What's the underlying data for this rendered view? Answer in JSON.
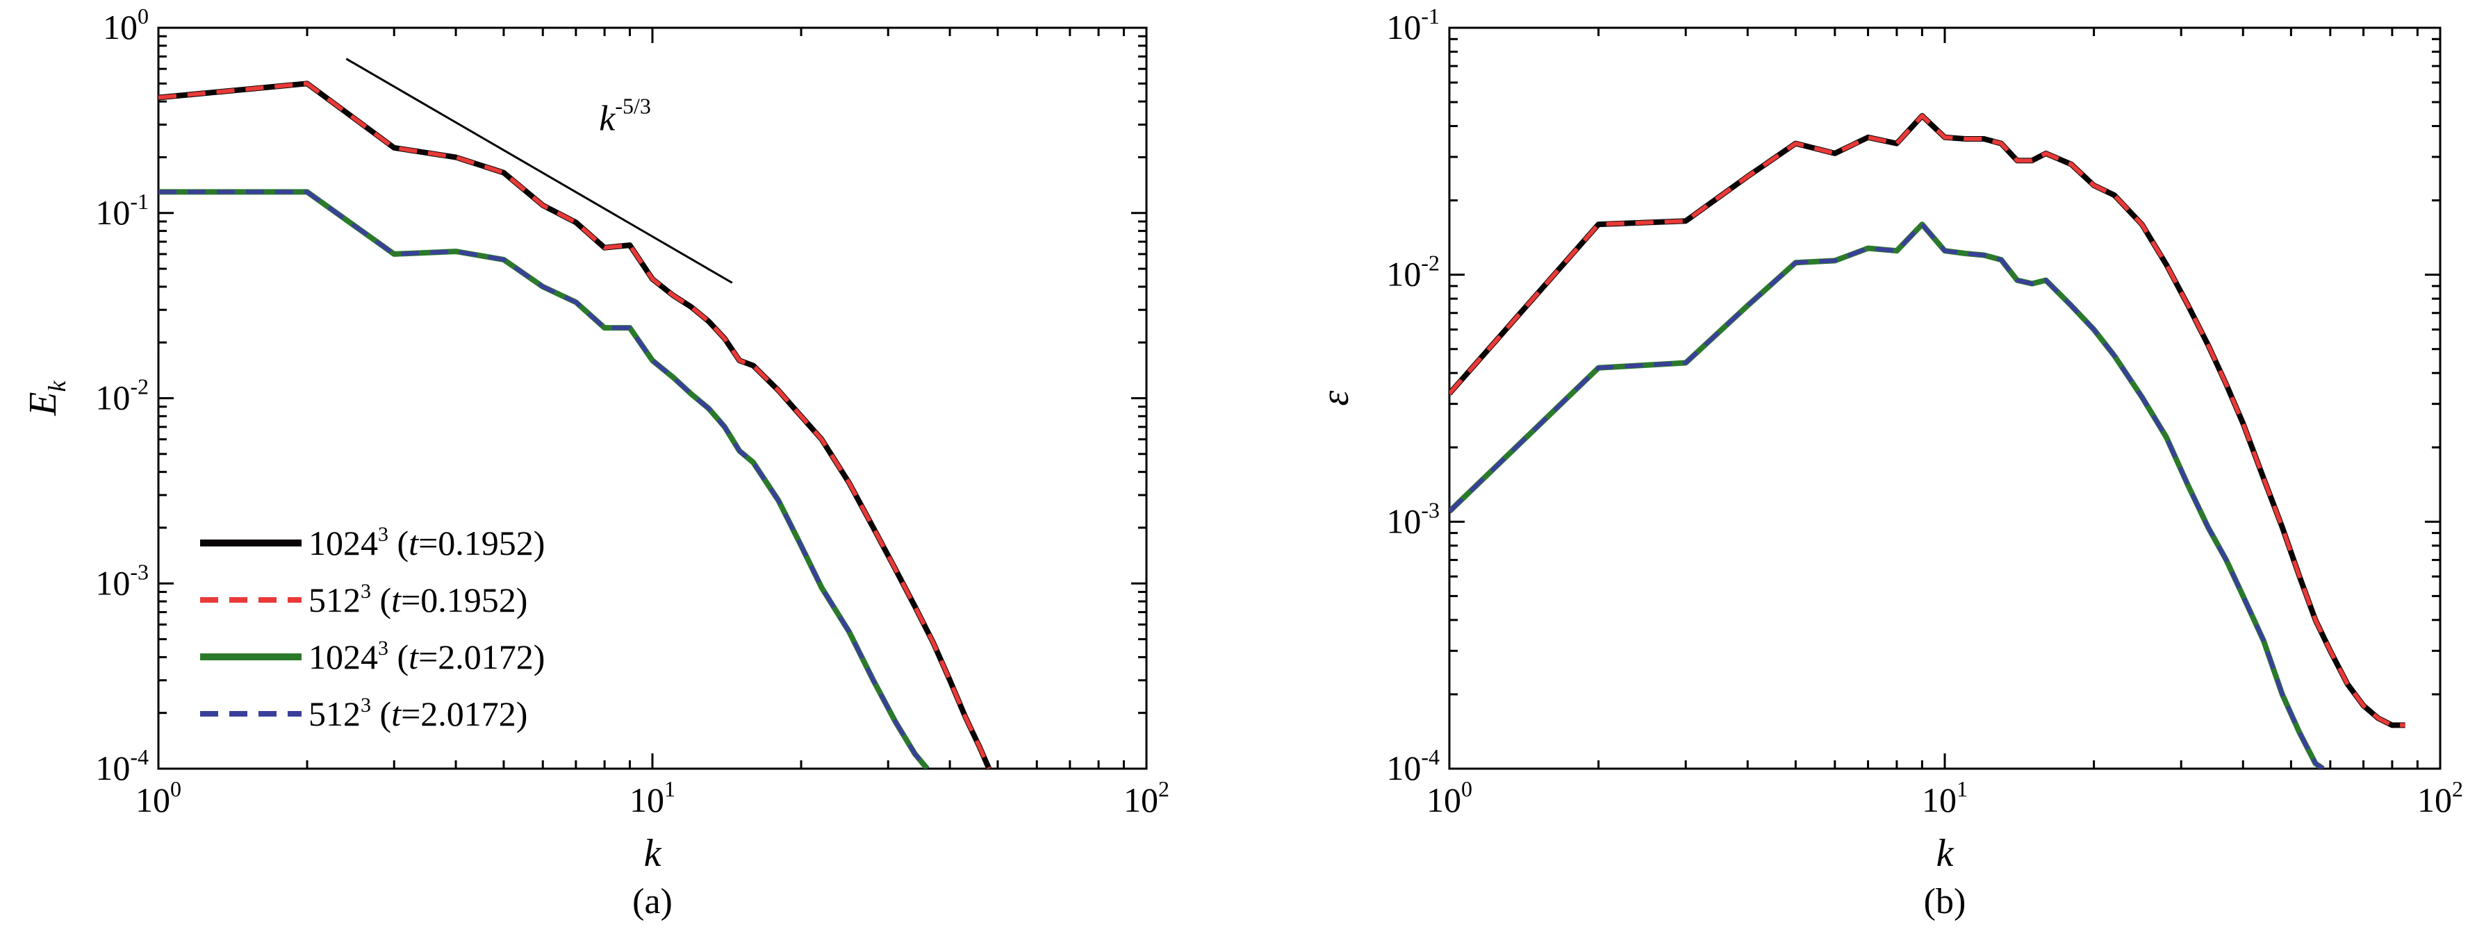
{
  "chart_data": [
    {
      "panel_label": "(a)",
      "type": "line",
      "xlabel": "k",
      "ylabel": {
        "base": "E",
        "sub": "k"
      },
      "xscale": "log",
      "yscale": "log",
      "xlim": [
        1,
        100
      ],
      "ylim": [
        0.0001,
        1
      ],
      "xticks": [
        {
          "base": "10",
          "exp": "0"
        },
        {
          "base": "10",
          "exp": "1"
        },
        {
          "base": "10",
          "exp": "2"
        }
      ],
      "yticks": [
        {
          "base": "10",
          "exp": "-4"
        },
        {
          "base": "10",
          "exp": "-3"
        },
        {
          "base": "10",
          "exp": "-2"
        },
        {
          "base": "10",
          "exp": "-1"
        },
        {
          "base": "10",
          "exp": "0"
        }
      ],
      "legend_position": "bottom-left",
      "annotation": {
        "base": "k",
        "exp": "-5/3",
        "line": {
          "from": [
            2.4,
            0.68
          ],
          "to": [
            14.5,
            0.042
          ]
        },
        "label_at": [
          7.8,
          0.28
        ]
      },
      "series": [
        {
          "name": {
            "res": "1024",
            "pow": "3",
            "t": "t",
            "rest": "=0.1952)"
          },
          "color": "#0a0505",
          "dash": "solid",
          "stroke": 8,
          "x": [
            1,
            2,
            3,
            4,
            5,
            6,
            7,
            8,
            9,
            10,
            11,
            12,
            13,
            14,
            15,
            16,
            18,
            20,
            22,
            25,
            28,
            31,
            34,
            37,
            40,
            43,
            46,
            48
          ],
          "y": [
            0.42,
            0.5,
            0.225,
            0.2,
            0.165,
            0.11,
            0.089,
            0.065,
            0.067,
            0.044,
            0.036,
            0.031,
            0.026,
            0.021,
            0.016,
            0.015,
            0.011,
            0.008,
            0.006,
            0.0035,
            0.002,
            0.0012,
            0.00075,
            0.00048,
            0.0003,
            0.00019,
            0.00013,
            0.0001
          ]
        },
        {
          "name": {
            "res": "512",
            "pow": "3",
            "t": "t",
            "rest": "=0.1952)"
          },
          "color": "#e83a38",
          "dash": "dashed",
          "stroke": 6,
          "x": [
            1,
            2,
            3,
            4,
            5,
            6,
            7,
            8,
            9,
            10,
            11,
            12,
            13,
            14,
            15,
            16,
            18,
            20,
            22,
            25,
            28,
            31,
            34,
            37,
            40,
            43,
            46,
            48
          ],
          "y": [
            0.42,
            0.5,
            0.225,
            0.2,
            0.165,
            0.11,
            0.089,
            0.065,
            0.067,
            0.044,
            0.036,
            0.031,
            0.026,
            0.021,
            0.016,
            0.015,
            0.011,
            0.008,
            0.006,
            0.0035,
            0.002,
            0.0012,
            0.00075,
            0.00048,
            0.0003,
            0.00019,
            0.00013,
            0.0001
          ]
        },
        {
          "name": {
            "res": "1024",
            "pow": "3",
            "t": "t",
            "rest": "=2.0172)"
          },
          "color": "#2b7a2b",
          "dash": "solid",
          "stroke": 8,
          "x": [
            1,
            2,
            3,
            4,
            5,
            6,
            7,
            8,
            9,
            10,
            11,
            12,
            13,
            14,
            15,
            16,
            18,
            20,
            22,
            25,
            28,
            31,
            34,
            36
          ],
          "y": [
            0.13,
            0.13,
            0.06,
            0.062,
            0.056,
            0.04,
            0.033,
            0.024,
            0.024,
            0.016,
            0.013,
            0.0105,
            0.0088,
            0.007,
            0.0052,
            0.0045,
            0.0028,
            0.0016,
            0.00095,
            0.00055,
            0.0003,
            0.00018,
            0.00012,
            0.0001
          ]
        },
        {
          "name": {
            "res": "512",
            "pow": "3",
            "t": "t",
            "rest": "=2.0172)"
          },
          "color": "#3a3f9a",
          "dash": "dashed",
          "stroke": 6,
          "x": [
            1,
            2,
            3,
            4,
            5,
            6,
            7,
            8,
            9,
            10,
            11,
            12,
            13,
            14,
            15,
            16,
            18,
            20,
            22,
            25,
            28,
            31,
            34,
            36
          ],
          "y": [
            0.13,
            0.13,
            0.06,
            0.062,
            0.056,
            0.04,
            0.033,
            0.024,
            0.024,
            0.016,
            0.013,
            0.0105,
            0.0088,
            0.007,
            0.0052,
            0.0045,
            0.0028,
            0.0016,
            0.00095,
            0.00055,
            0.0003,
            0.00018,
            0.00012,
            0.0001
          ]
        }
      ]
    },
    {
      "panel_label": "(b)",
      "type": "line",
      "xlabel": "k",
      "ylabel": {
        "base": "ε",
        "sub": ""
      },
      "xscale": "log",
      "yscale": "log",
      "xlim": [
        1,
        100
      ],
      "ylim": [
        0.0001,
        0.1
      ],
      "xticks": [
        {
          "base": "10",
          "exp": "0"
        },
        {
          "base": "10",
          "exp": "1"
        },
        {
          "base": "10",
          "exp": "2"
        }
      ],
      "yticks": [
        {
          "base": "10",
          "exp": "-4"
        },
        {
          "base": "10",
          "exp": "-3"
        },
        {
          "base": "10",
          "exp": "-2"
        },
        {
          "base": "10",
          "exp": "-1"
        }
      ],
      "series": [
        {
          "color": "#0a0505",
          "dash": "solid",
          "stroke": 8,
          "x": [
            1,
            2,
            3,
            4,
            5,
            6,
            7,
            8,
            9,
            10,
            11,
            12,
            13,
            14,
            15,
            16,
            18,
            20,
            22,
            25,
            28,
            31,
            34,
            37,
            40,
            44,
            48,
            52,
            56,
            60,
            65,
            70,
            75,
            80,
            85
          ],
          "y": [
            0.0033,
            0.016,
            0.0165,
            0.025,
            0.034,
            0.031,
            0.036,
            0.034,
            0.044,
            0.036,
            0.0355,
            0.0355,
            0.034,
            0.029,
            0.029,
            0.031,
            0.028,
            0.023,
            0.021,
            0.016,
            0.011,
            0.0075,
            0.0052,
            0.0036,
            0.0025,
            0.0015,
            0.00095,
            0.0006,
            0.0004,
            0.0003,
            0.00022,
            0.00018,
            0.00016,
            0.00015,
            0.00015
          ]
        },
        {
          "color": "#e83a38",
          "dash": "dashed",
          "stroke": 6,
          "x": [
            1,
            2,
            3,
            4,
            5,
            6,
            7,
            8,
            9,
            10,
            11,
            12,
            13,
            14,
            15,
            16,
            18,
            20,
            22,
            25,
            28,
            31,
            34,
            37,
            40,
            44,
            48,
            52,
            56,
            60,
            65,
            70,
            75,
            80,
            85
          ],
          "y": [
            0.0033,
            0.016,
            0.0165,
            0.025,
            0.034,
            0.031,
            0.036,
            0.034,
            0.044,
            0.036,
            0.0355,
            0.0355,
            0.034,
            0.029,
            0.029,
            0.031,
            0.028,
            0.023,
            0.021,
            0.016,
            0.011,
            0.0075,
            0.0052,
            0.0036,
            0.0025,
            0.0015,
            0.00095,
            0.0006,
            0.0004,
            0.0003,
            0.00022,
            0.00018,
            0.00016,
            0.00015,
            0.00015
          ]
        },
        {
          "color": "#2b7a2b",
          "dash": "solid",
          "stroke": 8,
          "x": [
            1,
            2,
            3,
            4,
            5,
            6,
            7,
            8,
            9,
            10,
            11,
            12,
            13,
            14,
            15,
            16,
            18,
            20,
            22,
            25,
            28,
            31,
            34,
            37,
            40,
            44,
            48,
            52,
            56,
            58
          ],
          "y": [
            0.0011,
            0.0042,
            0.0044,
            0.0075,
            0.0112,
            0.0114,
            0.0128,
            0.0125,
            0.016,
            0.0125,
            0.0122,
            0.012,
            0.0115,
            0.0095,
            0.0092,
            0.0095,
            0.0075,
            0.006,
            0.0047,
            0.0032,
            0.0022,
            0.0014,
            0.00095,
            0.0007,
            0.0005,
            0.00033,
            0.0002,
            0.00014,
            0.000105,
            0.0001
          ]
        },
        {
          "color": "#3a3f9a",
          "dash": "dashed",
          "stroke": 6,
          "x": [
            1,
            2,
            3,
            4,
            5,
            6,
            7,
            8,
            9,
            10,
            11,
            12,
            13,
            14,
            15,
            16,
            18,
            20,
            22,
            25,
            28,
            31,
            34,
            37,
            40,
            44,
            48,
            52,
            56,
            58
          ],
          "y": [
            0.0011,
            0.0042,
            0.0044,
            0.0075,
            0.0112,
            0.0114,
            0.0128,
            0.0125,
            0.016,
            0.0125,
            0.0122,
            0.012,
            0.0115,
            0.0095,
            0.0092,
            0.0095,
            0.0075,
            0.006,
            0.0047,
            0.0032,
            0.0022,
            0.0014,
            0.00095,
            0.0007,
            0.0005,
            0.00033,
            0.0002,
            0.00014,
            0.000105,
            0.0001
          ]
        }
      ]
    }
  ]
}
